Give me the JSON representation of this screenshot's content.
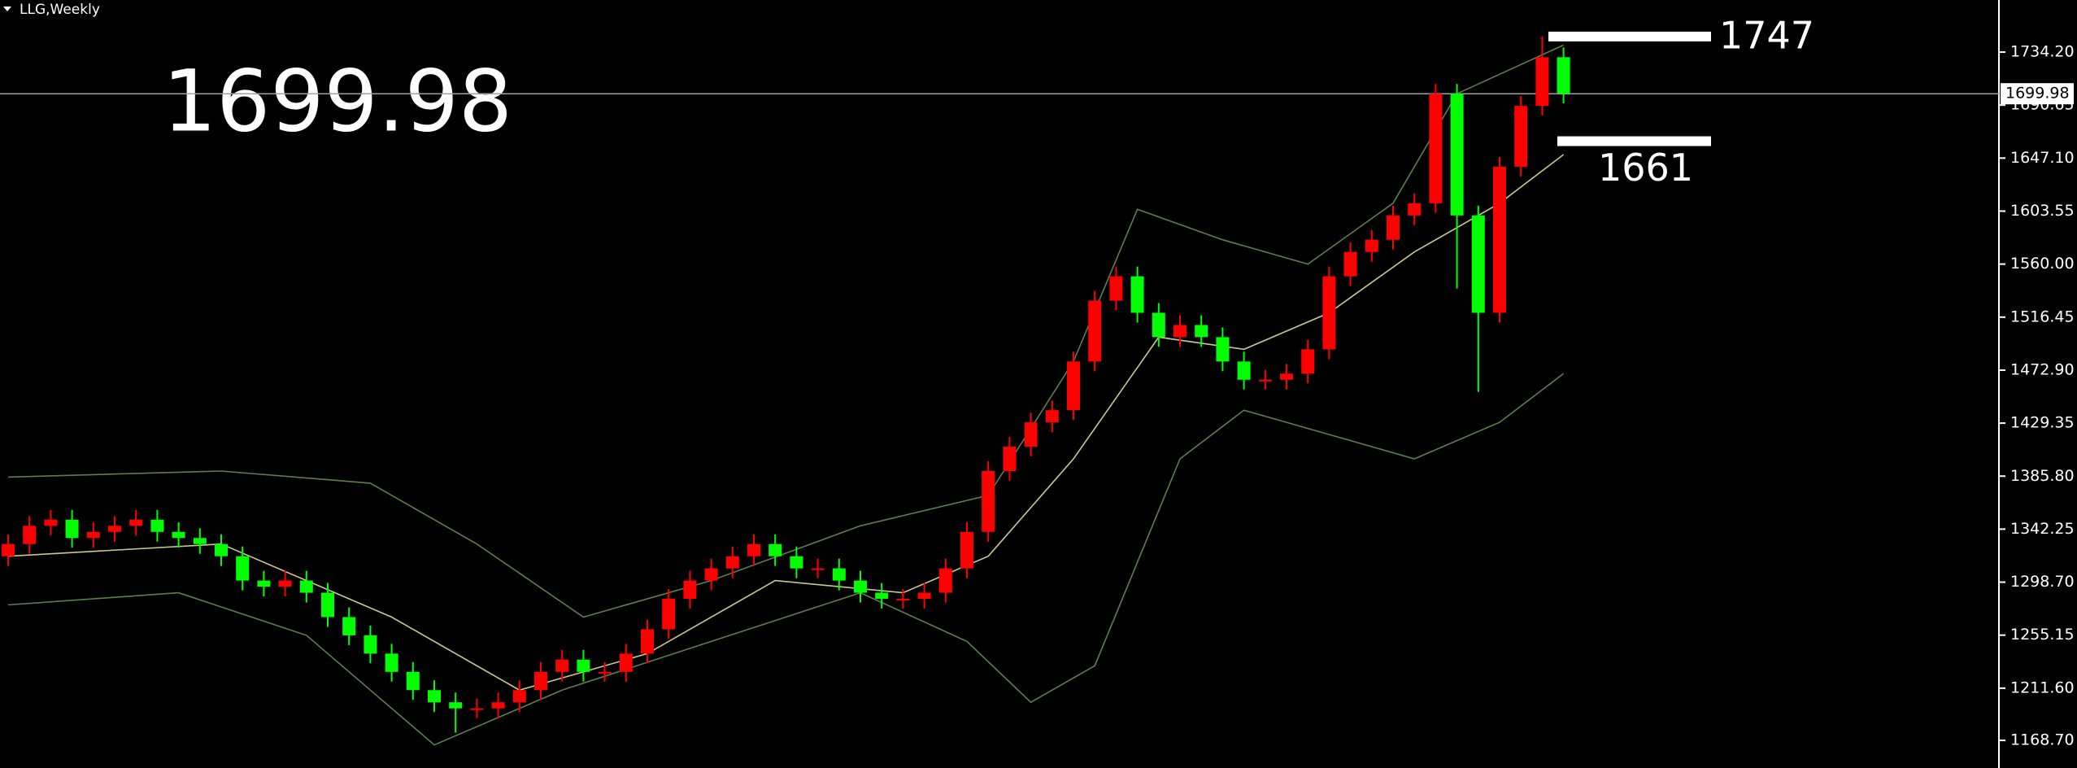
{
  "chart_data": {
    "type": "candlestick",
    "title": "LLG,Weekly",
    "last_price": 1699.98,
    "up_color": "#ff0000",
    "down_color": "#00ff00",
    "open": [
      1320,
      1330,
      1345,
      1350,
      1335,
      1340,
      1345,
      1350,
      1340,
      1335,
      1330,
      1320,
      1300,
      1295,
      1300,
      1290,
      1270,
      1255,
      1240,
      1225,
      1210,
      1200,
      1195,
      1195,
      1200,
      1210,
      1225,
      1235,
      1225,
      1225,
      1240,
      1260,
      1285,
      1300,
      1310,
      1320,
      1330,
      1320,
      1310,
      1310,
      1300,
      1290,
      1285,
      1285,
      1290,
      1310,
      1340,
      1390,
      1410,
      1430,
      1440,
      1480,
      1530,
      1550,
      1520,
      1500,
      1510,
      1500,
      1480,
      1465,
      1465,
      1470,
      1490,
      1550,
      1570,
      1580,
      1600,
      1610,
      1700,
      1600,
      1520,
      1640,
      1690,
      1730
    ],
    "high": [
      1338,
      1353,
      1358,
      1358,
      1348,
      1353,
      1358,
      1358,
      1348,
      1343,
      1338,
      1328,
      1308,
      1308,
      1308,
      1298,
      1278,
      1263,
      1248,
      1233,
      1218,
      1208,
      1203,
      1208,
      1218,
      1233,
      1243,
      1243,
      1233,
      1248,
      1268,
      1293,
      1308,
      1318,
      1328,
      1338,
      1338,
      1328,
      1318,
      1318,
      1308,
      1298,
      1293,
      1298,
      1318,
      1348,
      1398,
      1418,
      1438,
      1448,
      1488,
      1538,
      1558,
      1558,
      1528,
      1518,
      1518,
      1508,
      1488,
      1473,
      1478,
      1498,
      1558,
      1578,
      1588,
      1608,
      1618,
      1708,
      1708,
      1608,
      1648,
      1698,
      1747,
      1738
    ],
    "low": [
      1312,
      1322,
      1337,
      1327,
      1327,
      1332,
      1337,
      1332,
      1327,
      1322,
      1312,
      1292,
      1287,
      1287,
      1282,
      1262,
      1247,
      1232,
      1217,
      1202,
      1192,
      1175,
      1187,
      1187,
      1192,
      1202,
      1217,
      1217,
      1217,
      1217,
      1232,
      1252,
      1277,
      1292,
      1302,
      1312,
      1312,
      1302,
      1302,
      1292,
      1282,
      1277,
      1277,
      1277,
      1282,
      1302,
      1332,
      1382,
      1402,
      1422,
      1432,
      1472,
      1522,
      1512,
      1492,
      1492,
      1492,
      1472,
      1457,
      1457,
      1457,
      1462,
      1482,
      1542,
      1562,
      1572,
      1592,
      1602,
      1540,
      1455,
      1512,
      1632,
      1682,
      1692
    ],
    "close": [
      1330,
      1345,
      1350,
      1335,
      1340,
      1345,
      1350,
      1340,
      1335,
      1330,
      1320,
      1300,
      1295,
      1300,
      1290,
      1270,
      1255,
      1240,
      1225,
      1210,
      1200,
      1195,
      1195,
      1200,
      1210,
      1225,
      1235,
      1225,
      1225,
      1240,
      1260,
      1285,
      1300,
      1310,
      1320,
      1330,
      1320,
      1310,
      1310,
      1300,
      1290,
      1285,
      1285,
      1290,
      1310,
      1340,
      1390,
      1410,
      1430,
      1440,
      1480,
      1530,
      1550,
      1520,
      1500,
      1510,
      1500,
      1480,
      1465,
      1465,
      1470,
      1490,
      1550,
      1570,
      1580,
      1600,
      1610,
      1700,
      1600,
      1520,
      1640,
      1690,
      1730,
      1699.98
    ],
    "bands": [
      {
        "color": "#5d7f4e",
        "x": [
          0,
          10,
          17,
          22,
          27,
          33,
          40,
          46,
          50,
          53,
          57,
          61,
          65,
          68,
          73
        ],
        "values": [
          1385,
          1390,
          1380,
          1330,
          1270,
          1300,
          1345,
          1370,
          1480,
          1605,
          1580,
          1560,
          1610,
          1700,
          1740
        ]
      },
      {
        "color": "#5d7f4e",
        "x": [
          0,
          8,
          14,
          20,
          26,
          33,
          40,
          45,
          48,
          51,
          55,
          58,
          62,
          66,
          70,
          73
        ],
        "values": [
          1280,
          1290,
          1255,
          1165,
          1210,
          1250,
          1290,
          1250,
          1200,
          1230,
          1400,
          1440,
          1420,
          1400,
          1430,
          1470
        ]
      },
      {
        "color": "#c9c98f",
        "x": [
          0,
          10,
          18,
          24,
          30,
          36,
          42,
          46,
          50,
          54,
          58,
          62,
          66,
          70,
          73
        ],
        "values": [
          1320,
          1330,
          1270,
          1210,
          1240,
          1300,
          1290,
          1320,
          1400,
          1500,
          1490,
          1520,
          1570,
          1610,
          1650
        ]
      }
    ],
    "levels": [
      1747,
      1661
    ],
    "ylim": [
      1146,
      1777
    ],
    "yticks": [
      {
        "value": 1734.2,
        "label": "1734.20"
      },
      {
        "value": 1690.65,
        "label": "1690.65"
      },
      {
        "value": 1647.1,
        "label": "1647.10"
      },
      {
        "value": 1603.55,
        "label": "1603.55"
      },
      {
        "value": 1560,
        "label": "1560.00"
      },
      {
        "value": 1516.45,
        "label": "1516.45"
      },
      {
        "value": 1472.9,
        "label": "1472.90"
      },
      {
        "value": 1429.35,
        "label": "1429.35"
      },
      {
        "value": 1385.8,
        "label": "1385.80"
      },
      {
        "value": 1342.25,
        "label": "1342.25"
      },
      {
        "value": 1298.7,
        "label": "1298.70"
      },
      {
        "value": 1255.15,
        "label": "1255.15"
      },
      {
        "value": 1211.6,
        "label": "1211.60"
      },
      {
        "value": 1168.7,
        "label": "1168.70"
      }
    ]
  }
}
